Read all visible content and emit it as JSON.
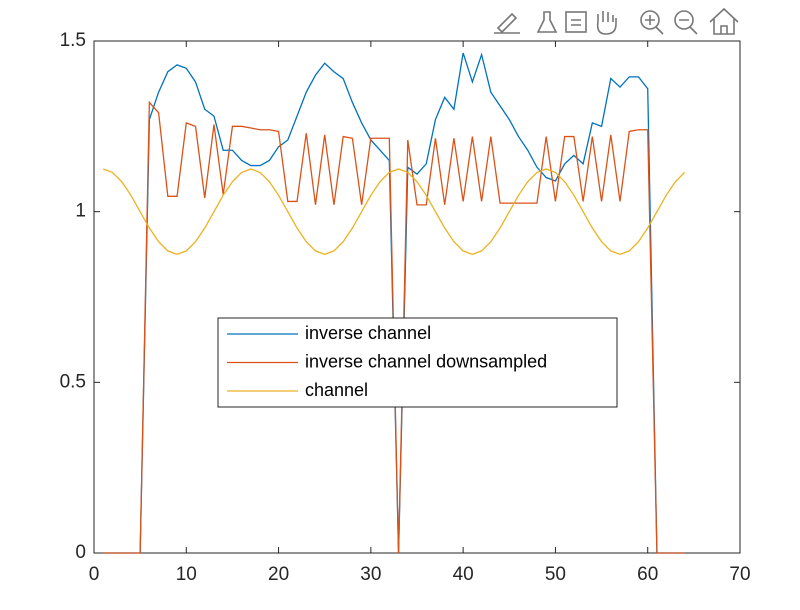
{
  "chart_data": {
    "type": "line",
    "x": [
      1,
      2,
      3,
      4,
      5,
      6,
      7,
      8,
      9,
      10,
      11,
      12,
      13,
      14,
      15,
      16,
      17,
      18,
      19,
      20,
      21,
      22,
      23,
      24,
      25,
      26,
      27,
      28,
      29,
      30,
      31,
      32,
      33,
      34,
      35,
      36,
      37,
      38,
      39,
      40,
      41,
      42,
      43,
      44,
      45,
      46,
      47,
      48,
      49,
      50,
      51,
      52,
      53,
      54,
      55,
      56,
      57,
      58,
      59,
      60,
      61,
      62,
      63,
      64
    ],
    "series": [
      {
        "name": "inverse channel",
        "color": "#0072BD",
        "values": [
          0,
          0,
          0,
          0,
          0,
          1.27,
          1.35,
          1.41,
          1.43,
          1.42,
          1.38,
          1.3,
          1.28,
          1.18,
          1.18,
          1.15,
          1.135,
          1.135,
          1.15,
          1.19,
          1.21,
          1.28,
          1.35,
          1.4,
          1.435,
          1.41,
          1.39,
          1.32,
          1.26,
          1.21,
          1.18,
          1.15,
          0,
          1.13,
          1.11,
          1.14,
          1.27,
          1.335,
          1.3,
          1.465,
          1.38,
          1.46,
          1.35,
          1.31,
          1.27,
          1.22,
          1.18,
          1.13,
          1.1,
          1.09,
          1.14,
          1.165,
          1.14,
          1.26,
          1.25,
          1.39,
          1.365,
          1.395,
          1.395,
          1.36,
          0,
          0,
          0,
          0
        ]
      },
      {
        "name": "inverse channel downsampled",
        "color": "#D95319",
        "values": [
          0,
          0,
          0,
          0,
          0,
          1.32,
          1.29,
          1.045,
          1.045,
          1.26,
          1.25,
          1.04,
          1.255,
          1.05,
          1.25,
          1.25,
          1.245,
          1.24,
          1.24,
          1.235,
          1.03,
          1.03,
          1.23,
          1.02,
          1.225,
          1.02,
          1.22,
          1.215,
          1.02,
          1.215,
          1.215,
          1.215,
          0,
          1.21,
          1.02,
          1.02,
          1.215,
          1.02,
          1.215,
          1.03,
          1.22,
          1.03,
          1.22,
          1.025,
          1.025,
          1.025,
          1.025,
          1.025,
          1.22,
          1.03,
          1.22,
          1.22,
          1.03,
          1.22,
          1.03,
          1.225,
          1.03,
          1.235,
          1.24,
          1.24,
          0,
          0,
          0,
          0
        ]
      },
      {
        "name": "channel",
        "color": "#EDB120",
        "values": [
          1.125,
          1.115,
          1.088,
          1.048,
          1,
          0.952,
          0.912,
          0.885,
          0.875,
          0.885,
          0.912,
          0.952,
          1,
          1.048,
          1.088,
          1.115,
          1.125,
          1.115,
          1.088,
          1.048,
          1,
          0.952,
          0.912,
          0.885,
          0.875,
          0.885,
          0.912,
          0.952,
          1,
          1.048,
          1.088,
          1.115,
          1.125,
          1.115,
          1.088,
          1.048,
          1,
          0.952,
          0.912,
          0.885,
          0.875,
          0.885,
          0.912,
          0.952,
          1,
          1.048,
          1.088,
          1.115,
          1.125,
          1.115,
          1.088,
          1.048,
          1,
          0.952,
          0.912,
          0.885,
          0.875,
          0.885,
          0.912,
          0.952,
          1,
          1.048,
          1.088,
          1.115
        ]
      }
    ],
    "xlim": [
      0,
      70
    ],
    "xticks": [
      0,
      10,
      20,
      30,
      40,
      50,
      60,
      70
    ],
    "ylim": [
      0,
      1.5
    ],
    "yticks": [
      0,
      0.5,
      1,
      1.5
    ],
    "grid": false,
    "legend_location": "center-left"
  }
}
